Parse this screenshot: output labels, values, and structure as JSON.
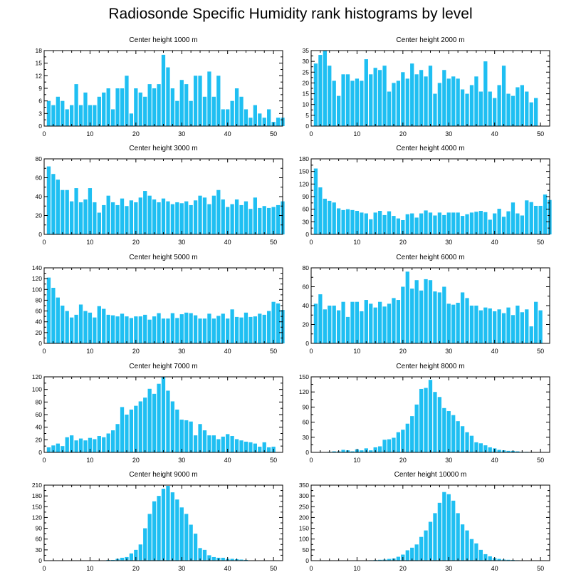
{
  "title": "Radiosonde Specific Humidity rank histograms by level",
  "colors": {
    "bar": "#1FBFF2",
    "axis": "#000000",
    "background": "#ffffff"
  },
  "chart_data": [
    {
      "type": "bar",
      "title": "Center height 1000 m",
      "xlim": [
        0,
        52
      ],
      "ylim": [
        0,
        18
      ],
      "xticks": [
        0,
        10,
        20,
        30,
        40,
        50
      ],
      "yticks": [
        0,
        3,
        6,
        9,
        12,
        15,
        18
      ],
      "values": [
        6,
        5,
        7,
        6,
        4,
        5,
        10,
        5,
        8,
        5,
        5,
        7,
        8,
        9,
        4,
        9,
        9,
        12,
        3,
        9,
        8,
        7,
        10,
        9,
        10,
        17,
        14,
        9,
        6,
        11,
        10,
        6,
        12,
        12,
        7,
        13,
        7,
        12,
        4,
        4,
        6,
        9,
        7,
        4,
        2,
        5,
        3,
        2,
        4,
        1,
        2,
        2
      ]
    },
    {
      "type": "bar",
      "title": "Center height 2000 m",
      "xlim": [
        0,
        52
      ],
      "ylim": [
        0,
        35
      ],
      "xticks": [
        0,
        10,
        20,
        30,
        40,
        50
      ],
      "yticks": [
        0,
        5,
        10,
        15,
        20,
        25,
        30,
        35
      ],
      "values": [
        29,
        33,
        35,
        28,
        21,
        14,
        24,
        24,
        21,
        22,
        21,
        31,
        24,
        27,
        26,
        28,
        16,
        20,
        21,
        25,
        22,
        29,
        24,
        26,
        23,
        28,
        15,
        20,
        26,
        22,
        23,
        22,
        17,
        15,
        19,
        23,
        16,
        30,
        16,
        13,
        19,
        28,
        15,
        14,
        18,
        19,
        16,
        11,
        13
      ]
    },
    {
      "type": "bar",
      "title": "Center height 3000 m",
      "xlim": [
        0,
        52
      ],
      "ylim": [
        0,
        80
      ],
      "xticks": [
        0,
        10,
        20,
        30,
        40,
        50
      ],
      "yticks": [
        0,
        20,
        40,
        60,
        80
      ],
      "values": [
        72,
        64,
        58,
        47,
        47,
        35,
        49,
        34,
        37,
        49,
        34,
        23,
        31,
        41,
        34,
        31,
        38,
        30,
        36,
        34,
        39,
        46,
        41,
        37,
        34,
        38,
        35,
        32,
        34,
        33,
        35,
        31,
        36,
        41,
        39,
        32,
        41,
        47,
        37,
        29,
        32,
        37,
        31,
        35,
        27,
        39,
        28,
        30,
        28,
        29,
        31,
        35
      ]
    },
    {
      "type": "bar",
      "title": "Center height 4000 m",
      "xlim": [
        0,
        52
      ],
      "ylim": [
        0,
        180
      ],
      "xticks": [
        0,
        10,
        20,
        30,
        40,
        50
      ],
      "yticks": [
        0,
        30,
        60,
        90,
        120,
        150,
        180
      ],
      "values": [
        157,
        112,
        85,
        80,
        76,
        62,
        58,
        60,
        58,
        56,
        52,
        50,
        36,
        52,
        56,
        46,
        55,
        44,
        38,
        34,
        48,
        50,
        40,
        50,
        57,
        52,
        45,
        52,
        46,
        52,
        52,
        52,
        44,
        48,
        52,
        54,
        56,
        53,
        35,
        50,
        61,
        42,
        55,
        76,
        50,
        45,
        81,
        77,
        68,
        68,
        95,
        82
      ]
    },
    {
      "type": "bar",
      "title": "Center height 5000 m",
      "xlim": [
        0,
        52
      ],
      "ylim": [
        0,
        140
      ],
      "xticks": [
        0,
        10,
        20,
        30,
        40,
        50
      ],
      "yticks": [
        0,
        20,
        40,
        60,
        80,
        100,
        120,
        140
      ],
      "values": [
        122,
        103,
        85,
        70,
        60,
        48,
        53,
        72,
        60,
        57,
        48,
        69,
        64,
        53,
        52,
        50,
        55,
        50,
        47,
        50,
        50,
        53,
        44,
        50,
        56,
        46,
        46,
        56,
        47,
        54,
        57,
        56,
        52,
        46,
        46,
        55,
        46,
        51,
        55,
        46,
        63,
        49,
        48,
        57,
        49,
        50,
        55,
        53,
        60,
        77,
        74,
        62
      ]
    },
    {
      "type": "bar",
      "title": "Center height 6000 m",
      "xlim": [
        0,
        52
      ],
      "ylim": [
        0,
        80
      ],
      "xticks": [
        0,
        10,
        20,
        30,
        40,
        50
      ],
      "yticks": [
        0,
        20,
        40,
        60,
        80
      ],
      "values": [
        42,
        52,
        36,
        40,
        40,
        35,
        44,
        28,
        44,
        44,
        34,
        46,
        42,
        38,
        44,
        39,
        42,
        48,
        46,
        60,
        76,
        58,
        67,
        56,
        68,
        67,
        55,
        54,
        60,
        42,
        41,
        43,
        54,
        48,
        40,
        40,
        35,
        38,
        37,
        34,
        36,
        32,
        38,
        30,
        40,
        33,
        36,
        18,
        44,
        35
      ]
    },
    {
      "type": "bar",
      "title": "Center height 7000 m",
      "xlim": [
        0,
        52
      ],
      "ylim": [
        0,
        120
      ],
      "xticks": [
        0,
        10,
        20,
        30,
        40,
        50
      ],
      "yticks": [
        0,
        20,
        40,
        60,
        80,
        100,
        120
      ],
      "values": [
        8,
        11,
        14,
        10,
        24,
        27,
        19,
        22,
        19,
        23,
        21,
        26,
        24,
        30,
        35,
        45,
        72,
        60,
        68,
        74,
        81,
        87,
        101,
        93,
        109,
        120,
        98,
        81,
        68,
        52,
        51,
        49,
        27,
        45,
        35,
        27,
        27,
        21,
        25,
        29,
        26,
        21,
        19,
        17,
        16,
        14,
        9,
        16,
        8,
        9
      ]
    },
    {
      "type": "bar",
      "title": "Center height 8000 m",
      "xlim": [
        0,
        52
      ],
      "ylim": [
        0,
        150
      ],
      "xticks": [
        0,
        10,
        20,
        30,
        40,
        50
      ],
      "yticks": [
        0,
        30,
        60,
        90,
        120,
        150
      ],
      "values": [
        0,
        0,
        0,
        1,
        2,
        2,
        5,
        4,
        2,
        6,
        4,
        8,
        4,
        10,
        12,
        25,
        26,
        29,
        40,
        45,
        57,
        72,
        95,
        126,
        128,
        144,
        120,
        110,
        88,
        82,
        74,
        62,
        52,
        40,
        33,
        20,
        18,
        14,
        10,
        8,
        5,
        4,
        3,
        3,
        2,
        1,
        1,
        0,
        0,
        0
      ]
    },
    {
      "type": "bar",
      "title": "Center height 9000 m",
      "xlim": [
        0,
        52
      ],
      "ylim": [
        0,
        210
      ],
      "xticks": [
        0,
        10,
        20,
        30,
        40,
        50
      ],
      "yticks": [
        0,
        30,
        60,
        90,
        120,
        150,
        180,
        210
      ],
      "values": [
        0,
        0,
        0,
        0,
        0,
        0,
        0,
        0,
        0,
        0,
        1,
        1,
        1,
        2,
        2,
        5,
        8,
        10,
        20,
        30,
        45,
        90,
        130,
        165,
        180,
        200,
        208,
        190,
        170,
        148,
        130,
        100,
        75,
        35,
        30,
        15,
        10,
        8,
        8,
        5,
        5,
        4,
        3,
        2,
        1,
        1,
        0,
        0,
        0,
        0
      ]
    },
    {
      "type": "bar",
      "title": "Center height 10000 m",
      "xlim": [
        0,
        52
      ],
      "ylim": [
        0,
        350
      ],
      "xticks": [
        0,
        10,
        20,
        30,
        40,
        50
      ],
      "yticks": [
        0,
        50,
        100,
        150,
        200,
        250,
        300,
        350
      ],
      "values": [
        0,
        0,
        0,
        0,
        0,
        0,
        0,
        0,
        0,
        0,
        1,
        1,
        2,
        3,
        4,
        5,
        8,
        10,
        18,
        28,
        48,
        60,
        75,
        110,
        140,
        180,
        220,
        268,
        318,
        308,
        278,
        220,
        168,
        140,
        100,
        80,
        50,
        30,
        20,
        12,
        8,
        5,
        4,
        3,
        2,
        1,
        1,
        0,
        0,
        0
      ]
    }
  ]
}
